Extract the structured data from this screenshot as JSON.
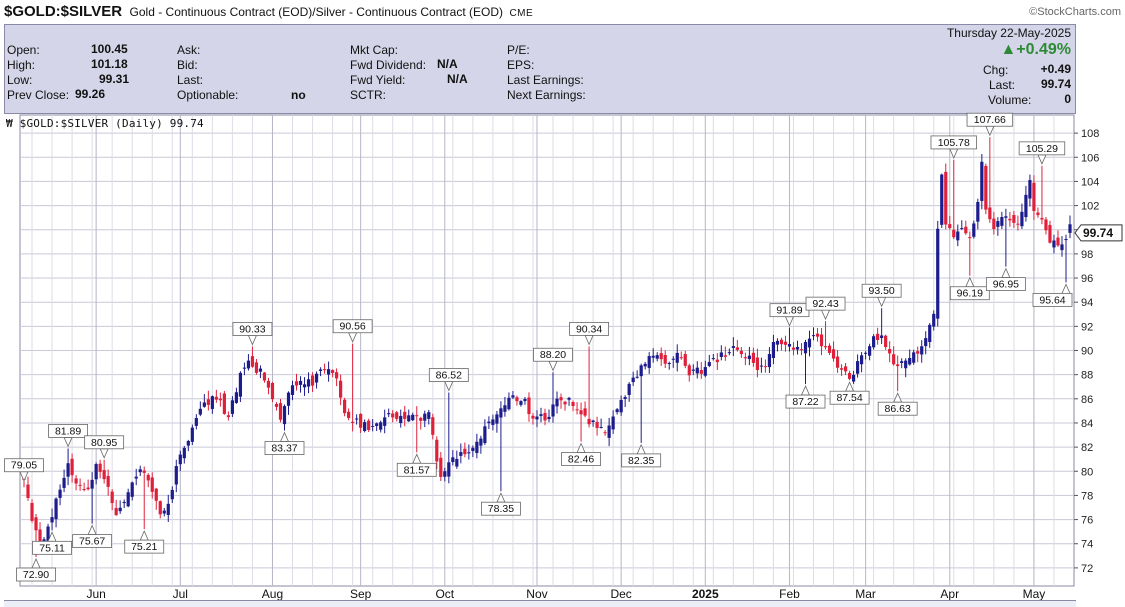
{
  "header": {
    "ticker": "$GOLD:$SILVER",
    "description": "Gold - Continuous Contract (EOD)/Silver - Continuous Contract (EOD)",
    "exchange": "CME",
    "brand": "©StockCharts.com"
  },
  "quote": {
    "open_label": "Open:",
    "open": "100.45",
    "high_label": "High:",
    "high": "101.18",
    "low_label": "Low:",
    "low": "99.31",
    "prev_close_label": "Prev Close:",
    "prev_close": "99.26",
    "ask_label": "Ask:",
    "bid_label": "Bid:",
    "last_label": "Last:",
    "optionable_label": "Optionable:",
    "optionable": "no",
    "mktcap_label": "Mkt Cap:",
    "fwd_div_label": "Fwd Dividend:",
    "fwd_div": "N/A",
    "fwd_yield_label": "Fwd Yield:",
    "fwd_yield": "N/A",
    "sctr_label": "SCTR:",
    "pe_label": "P/E:",
    "eps_label": "EPS:",
    "last_earn_label": "Last Earnings:",
    "next_earn_label": "Next Earnings:",
    "date": "Thursday  22-May-2025",
    "pct_change": "▲+0.49%",
    "chg_label": "Chg:",
    "chg": "+0.49",
    "last_label2": "Last:",
    "last": "99.74",
    "volume_label": "Volume:",
    "volume": "0"
  },
  "chart_label": "$GOLD:$SILVER (Daily) 99.74",
  "colors": {
    "up": "#1c1c8c",
    "down": "#e0203a",
    "grid": "#c9c9d8",
    "panel": "#ffffff"
  },
  "chart_data": {
    "type": "candlestick",
    "title": "$GOLD:$SILVER (Daily) 99.74",
    "ylim": [
      70.5,
      109.5
    ],
    "y_ticks": [
      72,
      74,
      76,
      78,
      80,
      82,
      84,
      86,
      88,
      90,
      92,
      94,
      96,
      98,
      100,
      102,
      104,
      106,
      108
    ],
    "x_labels": [
      {
        "label": "Jun",
        "pos": 18
      },
      {
        "label": "Jul",
        "pos": 39
      },
      {
        "label": "Aug",
        "pos": 62
      },
      {
        "label": "Sep",
        "pos": 84
      },
      {
        "label": "Oct",
        "pos": 105
      },
      {
        "label": "Nov",
        "pos": 128
      },
      {
        "label": "Dec",
        "pos": 149
      },
      {
        "label": "2025",
        "pos": 170
      },
      {
        "label": "Feb",
        "pos": 191
      },
      {
        "label": "Mar",
        "pos": 210
      },
      {
        "label": "Apr",
        "pos": 231
      },
      {
        "label": "May",
        "pos": 252
      }
    ],
    "anchors": [
      [
        0,
        79.0
      ],
      [
        4,
        73.4
      ],
      [
        7,
        76.5
      ],
      [
        9,
        78.5
      ],
      [
        11,
        80.8
      ],
      [
        13,
        78.9
      ],
      [
        16,
        78.7
      ],
      [
        18,
        80.4
      ],
      [
        21,
        78.7
      ],
      [
        23,
        76.6
      ],
      [
        26,
        78.2
      ],
      [
        29,
        80.1
      ],
      [
        31,
        79.0
      ],
      [
        34,
        76.4
      ],
      [
        36,
        77.2
      ],
      [
        38,
        80.2
      ],
      [
        42,
        83.7
      ],
      [
        45,
        85.5
      ],
      [
        48,
        86.4
      ],
      [
        51,
        84.3
      ],
      [
        54,
        88.0
      ],
      [
        56,
        89.0
      ],
      [
        59,
        88.2
      ],
      [
        62,
        86.2
      ],
      [
        64,
        84.4
      ],
      [
        66,
        86.6
      ],
      [
        68,
        87.2
      ],
      [
        72,
        87.4
      ],
      [
        75,
        88.6
      ],
      [
        78,
        88.0
      ],
      [
        80,
        84.6
      ],
      [
        83,
        84.0
      ],
      [
        86,
        83.6
      ],
      [
        89,
        84.2
      ],
      [
        92,
        84.7
      ],
      [
        95,
        84.4
      ],
      [
        98,
        84.3
      ],
      [
        101,
        84.6
      ],
      [
        104,
        79.3
      ],
      [
        107,
        81.0
      ],
      [
        110,
        81.5
      ],
      [
        113,
        82.6
      ],
      [
        116,
        83.8
      ],
      [
        119,
        85.0
      ],
      [
        122,
        86.3
      ],
      [
        124,
        86.0
      ],
      [
        127,
        84.6
      ],
      [
        130,
        84.1
      ],
      [
        133,
        86.0
      ],
      [
        136,
        85.8
      ],
      [
        139,
        84.8
      ],
      [
        142,
        83.8
      ],
      [
        145,
        83.2
      ],
      [
        148,
        84.9
      ],
      [
        151,
        87.2
      ],
      [
        154,
        88.6
      ],
      [
        157,
        89.6
      ],
      [
        160,
        88.9
      ],
      [
        163,
        89.5
      ],
      [
        166,
        88.1
      ],
      [
        169,
        88.4
      ],
      [
        172,
        89.2
      ],
      [
        175,
        89.7
      ],
      [
        178,
        90.3
      ],
      [
        181,
        89.3
      ],
      [
        183,
        88.1
      ],
      [
        185,
        88.9
      ],
      [
        187,
        90.6
      ],
      [
        189,
        90.3
      ],
      [
        191,
        90.2
      ],
      [
        193,
        89.8
      ],
      [
        196,
        90.9
      ],
      [
        198,
        91.3
      ],
      [
        200,
        90.1
      ],
      [
        202,
        89.4
      ],
      [
        204,
        88.3
      ],
      [
        206,
        87.7
      ],
      [
        208,
        88.9
      ],
      [
        210,
        90.0
      ],
      [
        212,
        90.9
      ],
      [
        214,
        91.1
      ],
      [
        216,
        89.6
      ],
      [
        218,
        88.7
      ],
      [
        221,
        89.2
      ],
      [
        224,
        90.3
      ],
      [
        227,
        93.2
      ],
      [
        228,
        100.4
      ],
      [
        229,
        104.6
      ],
      [
        230,
        100.3
      ],
      [
        232,
        99.4
      ],
      [
        234,
        100.4
      ],
      [
        236,
        99.4
      ],
      [
        238,
        102.3
      ],
      [
        239,
        105.4
      ],
      [
        240,
        101.8
      ],
      [
        242,
        100.4
      ],
      [
        244,
        101.0
      ],
      [
        246,
        101.2
      ],
      [
        248,
        100.6
      ],
      [
        250,
        102.9
      ],
      [
        251,
        104.3
      ],
      [
        252,
        101.6
      ],
      [
        254,
        100.6
      ],
      [
        256,
        99.2
      ],
      [
        258,
        99.0
      ],
      [
        259,
        98.6
      ],
      [
        260,
        99.3
      ],
      [
        261,
        99.74
      ]
    ],
    "forced": [
      [
        3,
        72.9,
        "l"
      ],
      [
        7,
        75.11,
        "l"
      ],
      [
        11,
        81.89,
        "h"
      ],
      [
        17,
        75.67,
        "l"
      ],
      [
        20,
        80.95,
        "h"
      ],
      [
        30,
        75.21,
        "l"
      ],
      [
        57,
        90.33,
        "h"
      ],
      [
        65,
        83.37,
        "l"
      ],
      [
        82,
        90.56,
        "h"
      ],
      [
        98,
        81.57,
        "l"
      ],
      [
        106,
        86.52,
        "h"
      ],
      [
        119,
        78.35,
        "l"
      ],
      [
        132,
        88.2,
        "h"
      ],
      [
        139,
        82.46,
        "l"
      ],
      [
        141,
        90.34,
        "h"
      ],
      [
        154,
        82.35,
        "l"
      ],
      [
        191,
        91.89,
        "h"
      ],
      [
        195,
        87.22,
        "l"
      ],
      [
        200,
        92.43,
        "h"
      ],
      [
        206,
        87.54,
        "l"
      ],
      [
        214,
        93.5,
        "h"
      ],
      [
        218,
        86.63,
        "l"
      ],
      [
        232,
        105.78,
        "h"
      ],
      [
        236,
        96.19,
        "l"
      ],
      [
        241,
        107.66,
        "h"
      ],
      [
        245,
        96.95,
        "l"
      ],
      [
        254,
        105.29,
        "h"
      ],
      [
        260,
        95.64,
        "l"
      ]
    ],
    "callouts": [
      {
        "label": "79.05",
        "x": 0,
        "y": 79.05,
        "dir": "down"
      },
      {
        "label": "72.90",
        "x": 3,
        "y": 72.9,
        "dir": "up"
      },
      {
        "label": "75.11",
        "x": 7,
        "y": 75.11,
        "dir": "up"
      },
      {
        "label": "81.89",
        "x": 11,
        "y": 81.89,
        "dir": "down"
      },
      {
        "label": "75.67",
        "x": 17,
        "y": 75.67,
        "dir": "up"
      },
      {
        "label": "80.95",
        "x": 20,
        "y": 80.95,
        "dir": "down"
      },
      {
        "label": "75.21",
        "x": 30,
        "y": 75.21,
        "dir": "up"
      },
      {
        "label": "90.33",
        "x": 57,
        "y": 90.33,
        "dir": "down"
      },
      {
        "label": "83.37",
        "x": 65,
        "y": 83.37,
        "dir": "up"
      },
      {
        "label": "90.56",
        "x": 82,
        "y": 90.56,
        "dir": "down"
      },
      {
        "label": "81.57",
        "x": 98,
        "y": 81.57,
        "dir": "up"
      },
      {
        "label": "86.52",
        "x": 106,
        "y": 86.52,
        "dir": "down"
      },
      {
        "label": "78.35",
        "x": 119,
        "y": 78.35,
        "dir": "up"
      },
      {
        "label": "88.20",
        "x": 132,
        "y": 88.2,
        "dir": "down"
      },
      {
        "label": "82.46",
        "x": 139,
        "y": 82.46,
        "dir": "up"
      },
      {
        "label": "90.34",
        "x": 141,
        "y": 90.34,
        "dir": "down"
      },
      {
        "label": "82.35",
        "x": 154,
        "y": 82.35,
        "dir": "up"
      },
      {
        "label": "91.89",
        "x": 191,
        "y": 91.89,
        "dir": "down"
      },
      {
        "label": "87.22",
        "x": 195,
        "y": 87.22,
        "dir": "up"
      },
      {
        "label": "92.43",
        "x": 200,
        "y": 92.43,
        "dir": "down"
      },
      {
        "label": "87.54",
        "x": 206,
        "y": 87.54,
        "dir": "up"
      },
      {
        "label": "93.50",
        "x": 214,
        "y": 93.5,
        "dir": "down"
      },
      {
        "label": "86.63",
        "x": 218,
        "y": 86.63,
        "dir": "up"
      },
      {
        "label": "105.78",
        "x": 232,
        "y": 105.78,
        "dir": "down"
      },
      {
        "label": "96.19",
        "x": 236,
        "y": 96.19,
        "dir": "up"
      },
      {
        "label": "107.66",
        "x": 241,
        "y": 107.66,
        "dir": "down"
      },
      {
        "label": "96.95",
        "x": 245,
        "y": 96.95,
        "dir": "up"
      },
      {
        "label": "105.29",
        "x": 254,
        "y": 105.29,
        "dir": "down"
      },
      {
        "label": "95.64",
        "x": 260,
        "y": 95.64,
        "dir": "up"
      }
    ],
    "last_value": "99.74"
  }
}
